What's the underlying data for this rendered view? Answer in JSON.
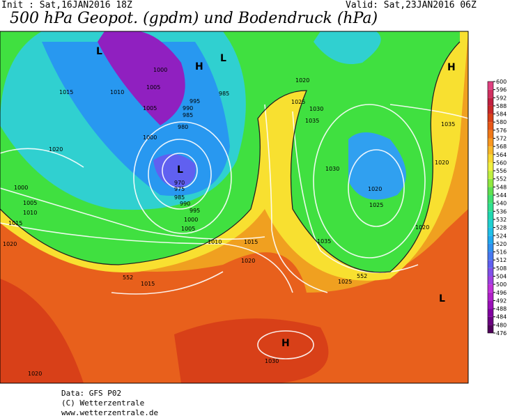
{
  "header": {
    "init": "Init : Sat,16JAN2016 18Z",
    "valid": "Valid: Sat,23JAN2016 06Z",
    "title": "500 hPa Geopot. (gpdm) und Bodendruck (hPa)"
  },
  "colorbar": {
    "ticks": [
      476,
      480,
      484,
      488,
      492,
      496,
      500,
      504,
      508,
      512,
      516,
      520,
      524,
      528,
      532,
      536,
      540,
      544,
      548,
      552,
      556,
      560,
      564,
      568,
      572,
      576,
      580,
      584,
      588,
      592,
      596,
      600
    ],
    "colors": [
      "#50005a",
      "#6a0080",
      "#8000a0",
      "#9a10b8",
      "#b020c8",
      "#c030d8",
      "#a040e0",
      "#8050e8",
      "#6060f0",
      "#4878f0",
      "#3090f0",
      "#20a8f0",
      "#20c0e8",
      "#20d0d0",
      "#20d8b0",
      "#30e090",
      "#40e070",
      "#60e050",
      "#90e840",
      "#c0f040",
      "#f0f040",
      "#f8d830",
      "#f8b828",
      "#f89820",
      "#f07818",
      "#e85818",
      "#d84018",
      "#c82828",
      "#c02040",
      "#d03060",
      "#e04080"
    ]
  },
  "isobar_labels": [
    "1000",
    "1005",
    "1010",
    "1015",
    "1005",
    "995",
    "990",
    "985",
    "980",
    "1000",
    "1020",
    "1000",
    "1005",
    "1010",
    "1015",
    "1020",
    "970",
    "975",
    "985",
    "990",
    "995",
    "1000",
    "1005",
    "1010",
    "1015",
    "1020",
    "1015",
    "1020",
    "1025",
    "1030",
    "1035",
    "1035",
    "1030",
    "1020",
    "1025",
    "1020",
    "1020",
    "1035",
    "1025",
    "1030",
    "1020",
    "985",
    "552",
    "552"
  ],
  "pressure_centers": [
    "L",
    "L",
    "H",
    "L",
    "H",
    "H",
    "L"
  ],
  "footer": [
    "Data: GFS P02",
    "(C) Wetterzentrale",
    "www.wetterzentrale.de"
  ]
}
